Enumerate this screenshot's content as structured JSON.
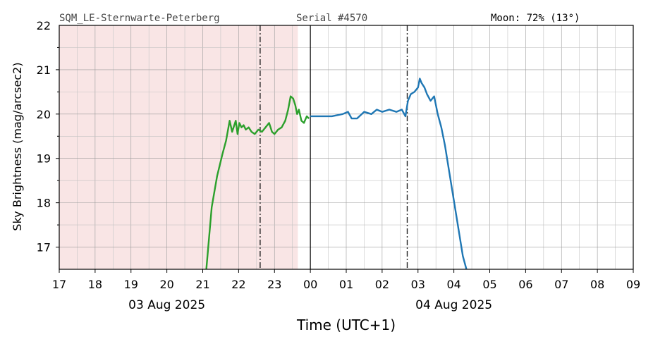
{
  "header": {
    "station": "SQM_LE-Sternwarte-Peterberg",
    "serial": "Serial #4570",
    "moon": "Moon: 72% (13°)"
  },
  "chart_data": {
    "type": "line",
    "xlabel": "Time (UTC+1)",
    "ylabel": "Sky Brightness (mag/arcsec2)",
    "ylim": [
      16.5,
      22
    ],
    "xlim_hours": [
      17,
      33
    ],
    "x_tick_labels": [
      "17",
      "18",
      "19",
      "20",
      "21",
      "22",
      "23",
      "00",
      "01",
      "02",
      "03",
      "04",
      "05",
      "06",
      "07",
      "08",
      "09"
    ],
    "y_ticks": [
      17,
      18,
      19,
      20,
      21,
      22
    ],
    "date_labels": [
      {
        "text": "03 Aug 2025",
        "at_hour": 20
      },
      {
        "text": "04 Aug 2025",
        "at_hour": 28
      }
    ],
    "grid": true,
    "shaded_region_hours": [
      17,
      23.65
    ],
    "shaded_color": "#f9e5e5",
    "midnight_line_hour": 24,
    "dashdot_lines_hours": [
      22.6,
      26.7
    ],
    "series": [
      {
        "color": "#2ca02c",
        "x": [
          21.1,
          21.25,
          21.4,
          21.55,
          21.65,
          21.75,
          21.82,
          21.88,
          21.92,
          21.97,
          22.02,
          22.08,
          22.14,
          22.2,
          22.28,
          22.36,
          22.45,
          22.55,
          22.65,
          22.75,
          22.85,
          22.93,
          23.0,
          23.1,
          23.2,
          23.3,
          23.38,
          23.45,
          23.52,
          23.58,
          23.63,
          23.68,
          23.75,
          23.82,
          23.9,
          23.96
        ],
        "values": [
          16.5,
          17.9,
          18.6,
          19.1,
          19.4,
          19.85,
          19.6,
          19.75,
          19.85,
          19.55,
          19.8,
          19.7,
          19.75,
          19.65,
          19.7,
          19.6,
          19.55,
          19.65,
          19.6,
          19.7,
          19.8,
          19.6,
          19.55,
          19.65,
          19.7,
          19.85,
          20.1,
          20.4,
          20.35,
          20.2,
          20.0,
          20.1,
          19.85,
          19.8,
          19.95,
          19.9
        ]
      },
      {
        "color": "#1f77b4",
        "x": [
          24.0,
          24.3,
          24.6,
          24.9,
          25.05,
          25.15,
          25.3,
          25.5,
          25.7,
          25.85,
          26.0,
          26.2,
          26.4,
          26.55,
          26.65,
          26.72,
          26.8,
          26.9,
          27.0,
          27.05,
          27.1,
          27.18,
          27.25,
          27.35,
          27.45,
          27.55,
          27.65,
          27.75,
          27.85,
          27.95,
          28.05,
          28.15,
          28.25,
          28.35
        ],
        "values": [
          19.95,
          19.95,
          19.95,
          20.0,
          20.05,
          19.9,
          19.9,
          20.05,
          20.0,
          20.1,
          20.05,
          20.1,
          20.05,
          20.1,
          19.95,
          20.3,
          20.45,
          20.5,
          20.6,
          20.8,
          20.7,
          20.6,
          20.45,
          20.3,
          20.4,
          20.0,
          19.7,
          19.3,
          18.8,
          18.3,
          17.8,
          17.3,
          16.8,
          16.5
        ]
      }
    ]
  }
}
